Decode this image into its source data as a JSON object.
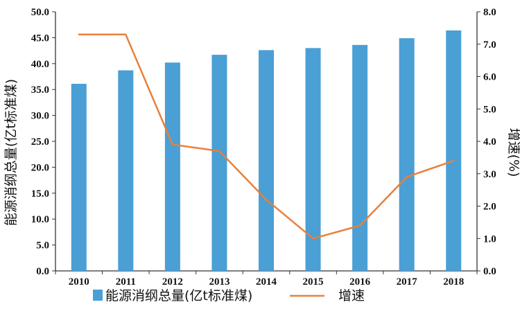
{
  "chart_data": {
    "type": "bar+line",
    "categories": [
      "2010",
      "2011",
      "2012",
      "2013",
      "2014",
      "2015",
      "2016",
      "2017",
      "2018"
    ],
    "series": [
      {
        "name": "能源消纲总量(亿t标准煤)",
        "type": "bar",
        "axis": "left",
        "color": "#4a9fd5",
        "values": [
          36.1,
          38.7,
          40.2,
          41.7,
          42.6,
          43.0,
          43.6,
          44.9,
          46.4
        ]
      },
      {
        "name": "增速",
        "type": "line",
        "axis": "right",
        "color": "#e8803a",
        "values": [
          7.3,
          7.3,
          3.9,
          3.7,
          2.2,
          1.0,
          1.4,
          2.9,
          3.4
        ]
      }
    ],
    "ylabel_left": "能源消纲总量(亿t标准煤)",
    "ylabel_right": "增速(%)",
    "ylim_left": [
      0,
      50
    ],
    "ylim_right": [
      0,
      8
    ],
    "yticks_left": [
      "0.0",
      "5.0",
      "10.0",
      "15.0",
      "20.0",
      "25.0",
      "30.0",
      "35.0",
      "40.0",
      "45.0",
      "50.0"
    ],
    "yticks_right": [
      "0.0",
      "1.0",
      "2.0",
      "3.0",
      "4.0",
      "5.0",
      "6.0",
      "7.0",
      "8.0"
    ],
    "legend_position": "bottom",
    "grid": false
  }
}
